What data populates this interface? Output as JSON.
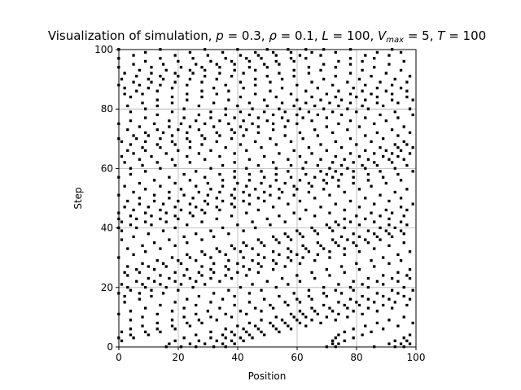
{
  "chart_data": {
    "type": "scatter",
    "title": "Visualization of simulation, p = 0.3, ρ = 0.1, L = 100, V_max = 5, T = 100",
    "title_parts": {
      "lead": "Visualization of simulation, ",
      "params": [
        {
          "symbol": "p",
          "value": "0.3"
        },
        {
          "symbol": "ρ",
          "value": "0.1"
        },
        {
          "symbol": "L",
          "value": "100"
        },
        {
          "symbol": "V",
          "subscript": "max",
          "value": "5"
        },
        {
          "symbol": "T",
          "value": "100"
        }
      ]
    },
    "xlabel": "Position",
    "ylabel": "Step",
    "xlim": [
      0,
      100
    ],
    "ylim": [
      0,
      100
    ],
    "xticks": [
      0,
      20,
      40,
      60,
      80,
      100
    ],
    "yticks": [
      0,
      20,
      40,
      60,
      80,
      100
    ],
    "grid": true,
    "marker_color": "#000000",
    "road_length": 100,
    "steps": 100,
    "density": 0.1,
    "seed": 20240
  }
}
